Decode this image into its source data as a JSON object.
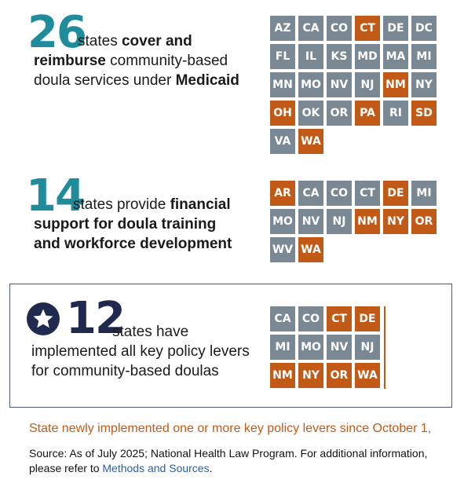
{
  "section1": {
    "number": "26",
    "text_plain_1": "states ",
    "text_bold_1": "cover and reimburse",
    "text_plain_2": "community-based doula services under ",
    "text_bold_2": "Medicaid",
    "states": [
      {
        "code": "AZ",
        "new": false
      },
      {
        "code": "CA",
        "new": false
      },
      {
        "code": "CO",
        "new": false
      },
      {
        "code": "CT",
        "new": true
      },
      {
        "code": "DE",
        "new": false
      },
      {
        "code": "DC",
        "new": false
      },
      {
        "code": "FL",
        "new": false
      },
      {
        "code": "IL",
        "new": false
      },
      {
        "code": "KS",
        "new": false
      },
      {
        "code": "MD",
        "new": false
      },
      {
        "code": "MA",
        "new": false
      },
      {
        "code": "MI",
        "new": false
      },
      {
        "code": "MN",
        "new": false
      },
      {
        "code": "MO",
        "new": false
      },
      {
        "code": "NV",
        "new": false
      },
      {
        "code": "NJ",
        "new": false
      },
      {
        "code": "NM",
        "new": true
      },
      {
        "code": "NY",
        "new": false
      },
      {
        "code": "OH",
        "new": true
      },
      {
        "code": "OK",
        "new": false
      },
      {
        "code": "OR",
        "new": false
      },
      {
        "code": "PA",
        "new": true
      },
      {
        "code": "RI",
        "new": false
      },
      {
        "code": "SD",
        "new": true
      },
      {
        "code": "VA",
        "new": false
      },
      {
        "code": "WA",
        "new": true
      }
    ]
  },
  "section2": {
    "number": "14",
    "text_plain_1": "states provide ",
    "text_bold_1": "financial support for doula training and workforce development",
    "states": [
      {
        "code": "AR",
        "new": true
      },
      {
        "code": "CA",
        "new": false
      },
      {
        "code": "CO",
        "new": false
      },
      {
        "code": "CT",
        "new": false
      },
      {
        "code": "DE",
        "new": true
      },
      {
        "code": "MI",
        "new": false
      },
      {
        "code": "MO",
        "new": false
      },
      {
        "code": "NV",
        "new": false
      },
      {
        "code": "NJ",
        "new": false
      },
      {
        "code": "NM",
        "new": true
      },
      {
        "code": "NY",
        "new": true
      },
      {
        "code": "OR",
        "new": true
      },
      {
        "code": "WV",
        "new": false
      },
      {
        "code": "WA",
        "new": true
      }
    ]
  },
  "section3": {
    "number": "12",
    "icon": "star-icon",
    "text_plain_1": "states have implemented all key policy levers for community-based doulas",
    "states": [
      {
        "code": "CA",
        "new": false
      },
      {
        "code": "CO",
        "new": false
      },
      {
        "code": "CT",
        "new": true
      },
      {
        "code": "DE",
        "new": true
      },
      {
        "code": "MI",
        "new": false
      },
      {
        "code": "MO",
        "new": false
      },
      {
        "code": "NV",
        "new": false
      },
      {
        "code": "NJ",
        "new": false
      },
      {
        "code": "NM",
        "new": true
      },
      {
        "code": "NY",
        "new": true
      },
      {
        "code": "OR",
        "new": true
      },
      {
        "code": "WA",
        "new": true
      }
    ]
  },
  "legend": "State newly implemented one or more key policy levers since October 1,",
  "source": {
    "text": "Source: As of July 2025; National Health Law Program. For additional information, please refer to ",
    "link": "Methods and Sources",
    "end": "."
  },
  "colors": {
    "teal": "#1f8c9b",
    "navy": "#1f2a4e",
    "gray_tile": "#7a8893",
    "orange_tile": "#c25a17"
  }
}
